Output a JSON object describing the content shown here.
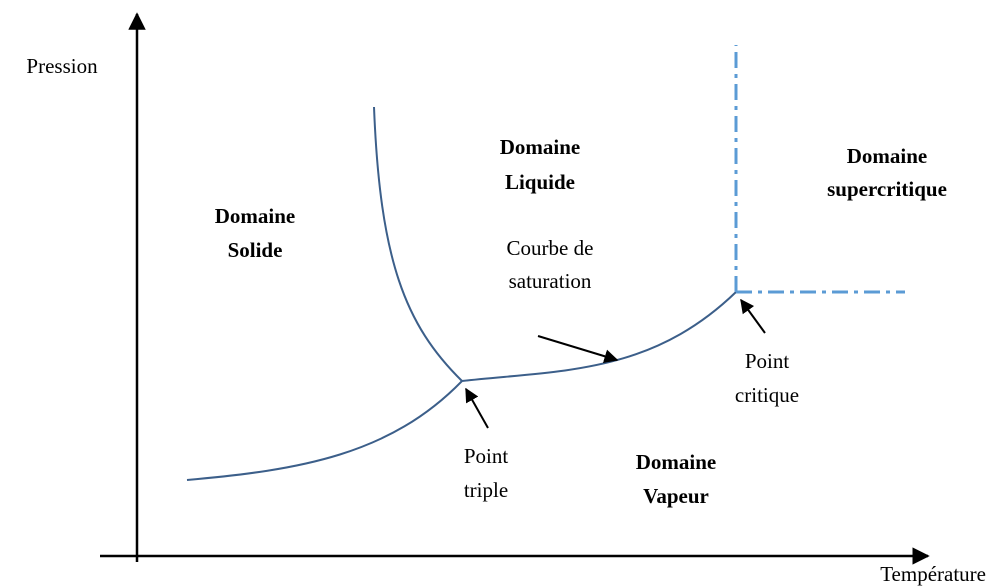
{
  "axes": {
    "y_label": "Pression",
    "x_label": "Température"
  },
  "regions": {
    "solid": [
      "Domaine",
      "Solide"
    ],
    "liquid": [
      "Domaine",
      "Liquide"
    ],
    "supercritical": [
      "Domaine",
      "supercritique"
    ],
    "vapour": [
      "Domaine",
      "Vapeur"
    ]
  },
  "annotations": {
    "saturation_curve": [
      "Courbe de",
      "saturation"
    ],
    "triple_point": [
      "Point",
      "triple"
    ],
    "critical_point": [
      "Point",
      "critique"
    ]
  }
}
